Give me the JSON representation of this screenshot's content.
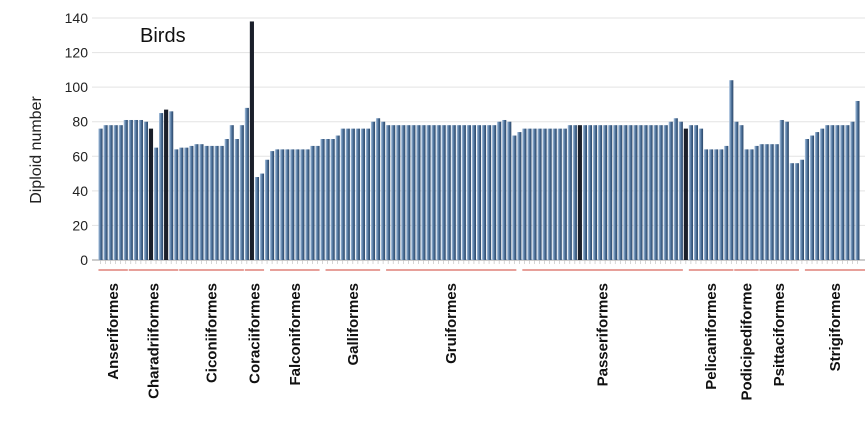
{
  "chart_data": {
    "type": "bar",
    "title": "Birds",
    "ylabel": "Diploid number",
    "xlabel": "",
    "ylim": [
      0,
      140
    ],
    "yticks": [
      0,
      20,
      40,
      60,
      80,
      100,
      120,
      140
    ],
    "grid": true,
    "bar_color": "#4a6f98",
    "bar_color_light": "#a9c3e0",
    "highlight_color": "#1a1f2a",
    "group_line_color": "#e7a09a",
    "values": [
      76,
      78,
      78,
      78,
      78,
      81,
      81,
      81,
      81,
      80,
      76,
      65,
      85,
      87,
      86,
      64,
      65,
      65,
      66,
      67,
      67,
      66,
      66,
      66,
      66,
      70,
      78,
      70,
      78,
      88,
      138,
      48,
      50,
      58,
      63,
      64,
      64,
      64,
      64,
      64,
      64,
      64,
      66,
      66,
      70,
      70,
      70,
      72,
      76,
      76,
      76,
      76,
      76,
      76,
      80,
      82,
      80,
      78,
      78,
      78,
      78,
      78,
      78,
      78,
      78,
      78,
      78,
      78,
      78,
      78,
      78,
      78,
      78,
      78,
      78,
      78,
      78,
      78,
      78,
      80,
      81,
      80,
      72,
      74,
      76,
      76,
      76,
      76,
      76,
      76,
      76,
      76,
      76,
      78,
      78,
      78,
      78,
      78,
      78,
      78,
      78,
      78,
      78,
      78,
      78,
      78,
      78,
      78,
      78,
      78,
      78,
      78,
      78,
      80,
      82,
      80,
      76,
      78,
      78,
      76,
      64,
      64,
      64,
      64,
      66,
      104,
      80,
      78,
      64,
      64,
      66,
      67,
      67,
      67,
      67,
      81,
      80,
      56,
      56,
      58,
      70,
      72,
      74,
      76,
      78,
      78,
      78,
      78,
      78,
      80,
      92
    ],
    "dark_bars": [
      10,
      13,
      30,
      95,
      116
    ],
    "groups": [
      {
        "name": "Anseriformes",
        "start": 0,
        "end": 5
      },
      {
        "name": "Charadriiformes",
        "start": 6,
        "end": 15
      },
      {
        "name": "Ciconiiformes",
        "start": 16,
        "end": 28
      },
      {
        "name": "Coraciiformes",
        "start": 29,
        "end": 32
      },
      {
        "name": "Falconiformes",
        "start": 34,
        "end": 43
      },
      {
        "name": "Galliformes",
        "start": 45,
        "end": 55
      },
      {
        "name": "Gruiformes",
        "start": 57,
        "end": 82
      },
      {
        "name": "Passeriformes",
        "start": 84,
        "end": 115
      },
      {
        "name": "Pelicaniformes",
        "start": 117,
        "end": 125
      },
      {
        "name": "Podicipediforme",
        "start": 126,
        "end": 130
      },
      {
        "name": "Psittaciformes",
        "start": 131,
        "end": 138
      },
      {
        "name": "Strigiformes",
        "start": 140,
        "end": 160
      }
    ]
  }
}
